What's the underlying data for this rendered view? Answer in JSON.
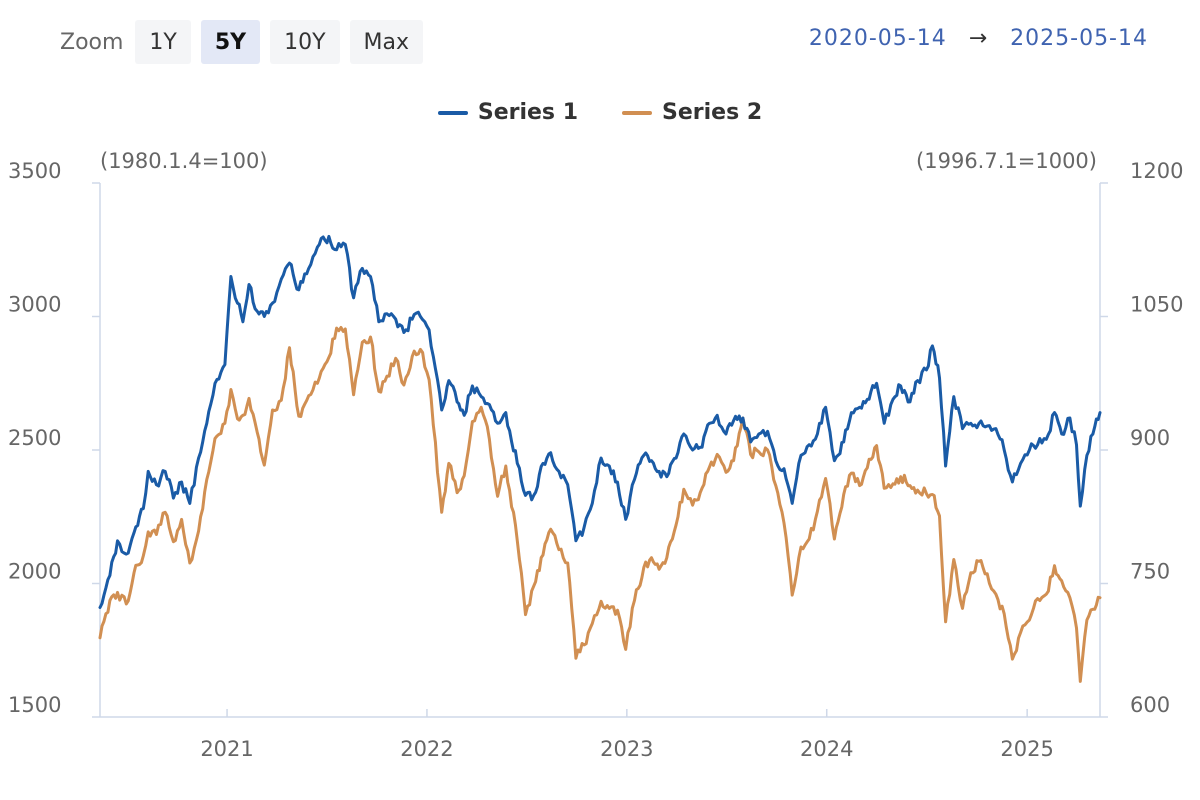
{
  "zoom": {
    "label": "Zoom",
    "buttons": [
      {
        "label": "1Y",
        "active": false
      },
      {
        "label": "5Y",
        "active": true
      },
      {
        "label": "10Y",
        "active": false
      },
      {
        "label": "Max",
        "active": false
      }
    ]
  },
  "date_range": {
    "start": "2020-05-14",
    "arrow": "→",
    "end": "2025-05-14"
  },
  "colors": {
    "series1": "#1a5ba6",
    "series2": "#d18f52",
    "axis": "#cfd8e8"
  },
  "chart_data": {
    "type": "line",
    "x_type": "date",
    "x_range": [
      "2020-05-14",
      "2025-05-14"
    ],
    "x_ticks": [
      "2021",
      "2022",
      "2023",
      "2024",
      "2025"
    ],
    "legend_position": "top-center",
    "grid": false,
    "y_left": {
      "title": "(1980.1.4=100)",
      "range": [
        1500,
        3500
      ],
      "ticks": [
        1500,
        2000,
        2500,
        3000,
        3500
      ]
    },
    "y_right": {
      "title": "(1996.7.1=1000)",
      "range": [
        600,
        1200
      ],
      "ticks": [
        600,
        750,
        900,
        1050,
        1200
      ]
    },
    "series": [
      {
        "name": "Series 1",
        "axis": "left",
        "points": [
          [
            "2020-05-14",
            1910
          ],
          [
            "2020-06-01",
            2030
          ],
          [
            "2020-06-15",
            2160
          ],
          [
            "2020-07-01",
            2110
          ],
          [
            "2020-07-15",
            2190
          ],
          [
            "2020-08-01",
            2280
          ],
          [
            "2020-08-10",
            2420
          ],
          [
            "2020-08-25",
            2370
          ],
          [
            "2020-09-10",
            2420
          ],
          [
            "2020-09-25",
            2320
          ],
          [
            "2020-10-10",
            2380
          ],
          [
            "2020-10-25",
            2300
          ],
          [
            "2020-11-10",
            2470
          ],
          [
            "2020-11-25",
            2600
          ],
          [
            "2020-12-10",
            2750
          ],
          [
            "2020-12-28",
            2820
          ],
          [
            "2021-01-08",
            3150
          ],
          [
            "2021-01-20",
            3050
          ],
          [
            "2021-01-30",
            2980
          ],
          [
            "2021-02-10",
            3120
          ],
          [
            "2021-02-25",
            3020
          ],
          [
            "2021-03-10",
            3000
          ],
          [
            "2021-03-25",
            3050
          ],
          [
            "2021-04-10",
            3140
          ],
          [
            "2021-04-25",
            3200
          ],
          [
            "2021-05-12",
            3100
          ],
          [
            "2021-05-30",
            3180
          ],
          [
            "2021-06-15",
            3260
          ],
          [
            "2021-07-06",
            3300
          ],
          [
            "2021-07-20",
            3250
          ],
          [
            "2021-08-05",
            3270
          ],
          [
            "2021-08-20",
            3070
          ],
          [
            "2021-09-05",
            3180
          ],
          [
            "2021-09-20",
            3150
          ],
          [
            "2021-10-05",
            2980
          ],
          [
            "2021-10-20",
            3010
          ],
          [
            "2021-11-05",
            2990
          ],
          [
            "2021-11-20",
            2940
          ],
          [
            "2021-12-05",
            2990
          ],
          [
            "2021-12-20",
            3000
          ],
          [
            "2022-01-05",
            2950
          ],
          [
            "2022-01-28",
            2650
          ],
          [
            "2022-02-10",
            2760
          ],
          [
            "2022-02-25",
            2680
          ],
          [
            "2022-03-10",
            2630
          ],
          [
            "2022-03-25",
            2740
          ],
          [
            "2022-04-10",
            2700
          ],
          [
            "2022-04-25",
            2670
          ],
          [
            "2022-05-10",
            2600
          ],
          [
            "2022-05-25",
            2640
          ],
          [
            "2022-06-15",
            2450
          ],
          [
            "2022-06-30",
            2330
          ],
          [
            "2022-07-15",
            2330
          ],
          [
            "2022-08-01",
            2450
          ],
          [
            "2022-08-15",
            2490
          ],
          [
            "2022-08-30",
            2420
          ],
          [
            "2022-09-15",
            2370
          ],
          [
            "2022-09-30",
            2160
          ],
          [
            "2022-10-15",
            2210
          ],
          [
            "2022-10-30",
            2300
          ],
          [
            "2022-11-15",
            2470
          ],
          [
            "2022-11-30",
            2440
          ],
          [
            "2022-12-15",
            2380
          ],
          [
            "2022-12-30",
            2240
          ],
          [
            "2023-01-15",
            2390
          ],
          [
            "2023-02-01",
            2480
          ],
          [
            "2023-02-15",
            2460
          ],
          [
            "2023-03-01",
            2420
          ],
          [
            "2023-03-15",
            2400
          ],
          [
            "2023-04-01",
            2470
          ],
          [
            "2023-04-15",
            2560
          ],
          [
            "2023-05-01",
            2500
          ],
          [
            "2023-05-15",
            2510
          ],
          [
            "2023-06-01",
            2600
          ],
          [
            "2023-06-15",
            2630
          ],
          [
            "2023-07-01",
            2560
          ],
          [
            "2023-07-15",
            2610
          ],
          [
            "2023-08-01",
            2620
          ],
          [
            "2023-08-15",
            2530
          ],
          [
            "2023-08-30",
            2560
          ],
          [
            "2023-09-15",
            2570
          ],
          [
            "2023-09-30",
            2460
          ],
          [
            "2023-10-15",
            2430
          ],
          [
            "2023-10-30",
            2300
          ],
          [
            "2023-11-15",
            2480
          ],
          [
            "2023-11-30",
            2520
          ],
          [
            "2023-12-15",
            2560
          ],
          [
            "2023-12-30",
            2660
          ],
          [
            "2024-01-15",
            2460
          ],
          [
            "2024-02-01",
            2530
          ],
          [
            "2024-02-15",
            2640
          ],
          [
            "2024-03-01",
            2660
          ],
          [
            "2024-03-15",
            2690
          ],
          [
            "2024-04-01",
            2750
          ],
          [
            "2024-04-15",
            2600
          ],
          [
            "2024-05-01",
            2690
          ],
          [
            "2024-05-15",
            2740
          ],
          [
            "2024-06-01",
            2680
          ],
          [
            "2024-06-15",
            2760
          ],
          [
            "2024-07-01",
            2800
          ],
          [
            "2024-07-12",
            2890
          ],
          [
            "2024-07-25",
            2770
          ],
          [
            "2024-08-05",
            2440
          ],
          [
            "2024-08-20",
            2700
          ],
          [
            "2024-09-05",
            2580
          ],
          [
            "2024-09-20",
            2600
          ],
          [
            "2024-10-05",
            2600
          ],
          [
            "2024-10-20",
            2590
          ],
          [
            "2024-11-05",
            2580
          ],
          [
            "2024-11-20",
            2500
          ],
          [
            "2024-12-05",
            2380
          ],
          [
            "2024-12-20",
            2450
          ],
          [
            "2025-01-05",
            2500
          ],
          [
            "2025-01-20",
            2520
          ],
          [
            "2025-02-05",
            2540
          ],
          [
            "2025-02-20",
            2640
          ],
          [
            "2025-03-05",
            2560
          ],
          [
            "2025-03-20",
            2620
          ],
          [
            "2025-04-01",
            2520
          ],
          [
            "2025-04-08",
            2290
          ],
          [
            "2025-04-20",
            2480
          ],
          [
            "2025-05-01",
            2560
          ],
          [
            "2025-05-14",
            2640
          ]
        ]
      },
      {
        "name": "Series 2",
        "axis": "right",
        "points": [
          [
            "2020-05-14",
            689
          ],
          [
            "2020-06-01",
            731
          ],
          [
            "2020-06-15",
            740
          ],
          [
            "2020-07-01",
            727
          ],
          [
            "2020-07-15",
            762
          ],
          [
            "2020-08-01",
            781
          ],
          [
            "2020-08-10",
            808
          ],
          [
            "2020-08-25",
            805
          ],
          [
            "2020-09-10",
            830
          ],
          [
            "2020-09-25",
            797
          ],
          [
            "2020-10-10",
            822
          ],
          [
            "2020-10-25",
            773
          ],
          [
            "2020-11-10",
            809
          ],
          [
            "2020-11-25",
            867
          ],
          [
            "2020-12-10",
            913
          ],
          [
            "2020-12-28",
            930
          ],
          [
            "2021-01-08",
            968
          ],
          [
            "2021-01-20",
            935
          ],
          [
            "2021-01-30",
            939
          ],
          [
            "2021-02-10",
            958
          ],
          [
            "2021-02-25",
            920
          ],
          [
            "2021-03-10",
            883
          ],
          [
            "2021-03-25",
            945
          ],
          [
            "2021-04-10",
            956
          ],
          [
            "2021-04-25",
            1015
          ],
          [
            "2021-05-12",
            938
          ],
          [
            "2021-05-30",
            961
          ],
          [
            "2021-06-15",
            975
          ],
          [
            "2021-07-06",
            1004
          ],
          [
            "2021-07-20",
            1037
          ],
          [
            "2021-08-05",
            1036
          ],
          [
            "2021-08-20",
            962
          ],
          [
            "2021-09-05",
            1021
          ],
          [
            "2021-09-20",
            1027
          ],
          [
            "2021-10-05",
            966
          ],
          [
            "2021-10-20",
            983
          ],
          [
            "2021-11-05",
            1003
          ],
          [
            "2021-11-20",
            973
          ],
          [
            "2021-12-05",
            1005
          ],
          [
            "2021-12-20",
            1013
          ],
          [
            "2022-01-05",
            979
          ],
          [
            "2022-01-28",
            830
          ],
          [
            "2022-02-10",
            885
          ],
          [
            "2022-02-25",
            852
          ],
          [
            "2022-03-10",
            871
          ],
          [
            "2022-03-25",
            932
          ],
          [
            "2022-04-10",
            948
          ],
          [
            "2022-04-25",
            912
          ],
          [
            "2022-05-10",
            848
          ],
          [
            "2022-05-25",
            882
          ],
          [
            "2022-06-15",
            798
          ],
          [
            "2022-06-30",
            715
          ],
          [
            "2022-07-15",
            747
          ],
          [
            "2022-08-01",
            782
          ],
          [
            "2022-08-15",
            811
          ],
          [
            "2022-08-30",
            788
          ],
          [
            "2022-09-15",
            773
          ],
          [
            "2022-09-30",
            666
          ],
          [
            "2022-10-15",
            681
          ],
          [
            "2022-10-30",
            705
          ],
          [
            "2022-11-15",
            730
          ],
          [
            "2022-11-30",
            722
          ],
          [
            "2022-12-15",
            720
          ],
          [
            "2022-12-30",
            676
          ],
          [
            "2023-01-15",
            731
          ],
          [
            "2023-02-01",
            768
          ],
          [
            "2023-02-15",
            779
          ],
          [
            "2023-03-01",
            766
          ],
          [
            "2023-03-15",
            779
          ],
          [
            "2023-04-01",
            816
          ],
          [
            "2023-04-15",
            856
          ],
          [
            "2023-05-01",
            838
          ],
          [
            "2023-05-15",
            852
          ],
          [
            "2023-06-01",
            881
          ],
          [
            "2023-06-15",
            895
          ],
          [
            "2023-07-01",
            875
          ],
          [
            "2023-07-15",
            888
          ],
          [
            "2023-08-01",
            936
          ],
          [
            "2023-08-15",
            895
          ],
          [
            "2023-08-30",
            898
          ],
          [
            "2023-09-15",
            900
          ],
          [
            "2023-09-30",
            860
          ],
          [
            "2023-10-15",
            818
          ],
          [
            "2023-10-30",
            737
          ],
          [
            "2023-11-15",
            791
          ],
          [
            "2023-11-30",
            800
          ],
          [
            "2023-12-15",
            831
          ],
          [
            "2023-12-30",
            868
          ],
          [
            "2024-01-15",
            800
          ],
          [
            "2024-02-01",
            850
          ],
          [
            "2024-02-15",
            874
          ],
          [
            "2024-03-01",
            860
          ],
          [
            "2024-03-15",
            880
          ],
          [
            "2024-04-01",
            905
          ],
          [
            "2024-04-15",
            857
          ],
          [
            "2024-05-01",
            862
          ],
          [
            "2024-05-15",
            870
          ],
          [
            "2024-06-01",
            860
          ],
          [
            "2024-06-15",
            855
          ],
          [
            "2024-07-01",
            851
          ],
          [
            "2024-07-12",
            850
          ],
          [
            "2024-07-25",
            826
          ],
          [
            "2024-08-05",
            707
          ],
          [
            "2024-08-20",
            777
          ],
          [
            "2024-09-05",
            722
          ],
          [
            "2024-09-20",
            762
          ],
          [
            "2024-10-05",
            775
          ],
          [
            "2024-10-20",
            761
          ],
          [
            "2024-11-05",
            738
          ],
          [
            "2024-11-20",
            716
          ],
          [
            "2024-12-05",
            665
          ],
          [
            "2024-12-20",
            695
          ],
          [
            "2025-01-05",
            709
          ],
          [
            "2025-01-20",
            733
          ],
          [
            "2025-02-05",
            738
          ],
          [
            "2025-02-20",
            770
          ],
          [
            "2025-03-05",
            753
          ],
          [
            "2025-03-20",
            734
          ],
          [
            "2025-04-01",
            700
          ],
          [
            "2025-04-08",
            640
          ],
          [
            "2025-04-20",
            709
          ],
          [
            "2025-05-01",
            721
          ],
          [
            "2025-05-14",
            734
          ]
        ]
      }
    ]
  }
}
